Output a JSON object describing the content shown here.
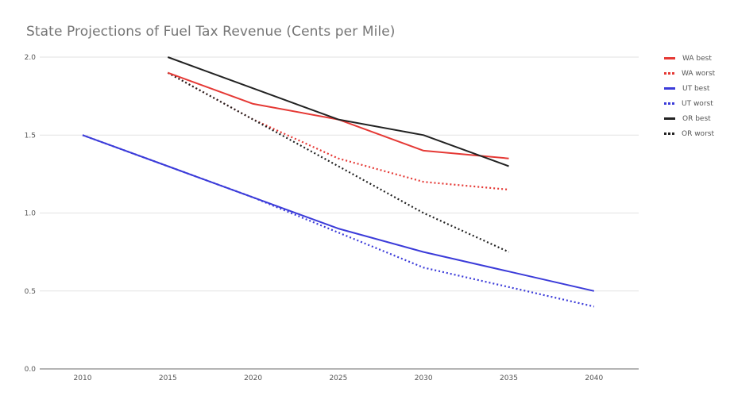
{
  "chart_data": {
    "type": "line",
    "title": "State Projections of Fuel Tax Revenue (Cents per Mile)",
    "xlabel": "",
    "ylabel": "",
    "x": [
      2010,
      2015,
      2020,
      2025,
      2030,
      2035,
      2040
    ],
    "x_tick_labels": [
      "2010",
      "2015",
      "2020",
      "2025",
      "2030",
      "2035",
      "2040"
    ],
    "y_tick_labels": [
      "0.0",
      "0.5",
      "1.0",
      "1.5",
      "2.0"
    ],
    "y_ticks": [
      0,
      0.5,
      1.0,
      1.5,
      2.0
    ],
    "ylim": [
      0,
      2.0
    ],
    "grid": true,
    "legend_position": "right",
    "series": [
      {
        "name": "WA best",
        "color": "#e53935",
        "style": "solid",
        "values": [
          null,
          1.9,
          1.7,
          1.6,
          1.4,
          1.35,
          null
        ]
      },
      {
        "name": "WA worst",
        "color": "#e53935",
        "style": "dotted",
        "values": [
          null,
          1.9,
          1.6,
          1.35,
          1.2,
          1.15,
          null
        ]
      },
      {
        "name": "UT best",
        "color": "#3b3bd9",
        "style": "solid",
        "values": [
          1.5,
          1.3,
          1.1,
          0.9,
          0.75,
          0.625,
          0.5
        ]
      },
      {
        "name": "UT worst",
        "color": "#3b3bd9",
        "style": "dotted",
        "values": [
          1.5,
          1.3,
          1.1,
          0.875,
          0.65,
          0.525,
          0.4
        ]
      },
      {
        "name": "OR best",
        "color": "#222222",
        "style": "solid",
        "values": [
          null,
          2.0,
          1.8,
          1.6,
          1.5,
          1.3,
          null
        ]
      },
      {
        "name": "OR worst",
        "color": "#222222",
        "style": "dotted",
        "values": [
          null,
          1.9,
          1.6,
          1.3,
          1.0,
          0.75,
          null
        ]
      }
    ]
  }
}
